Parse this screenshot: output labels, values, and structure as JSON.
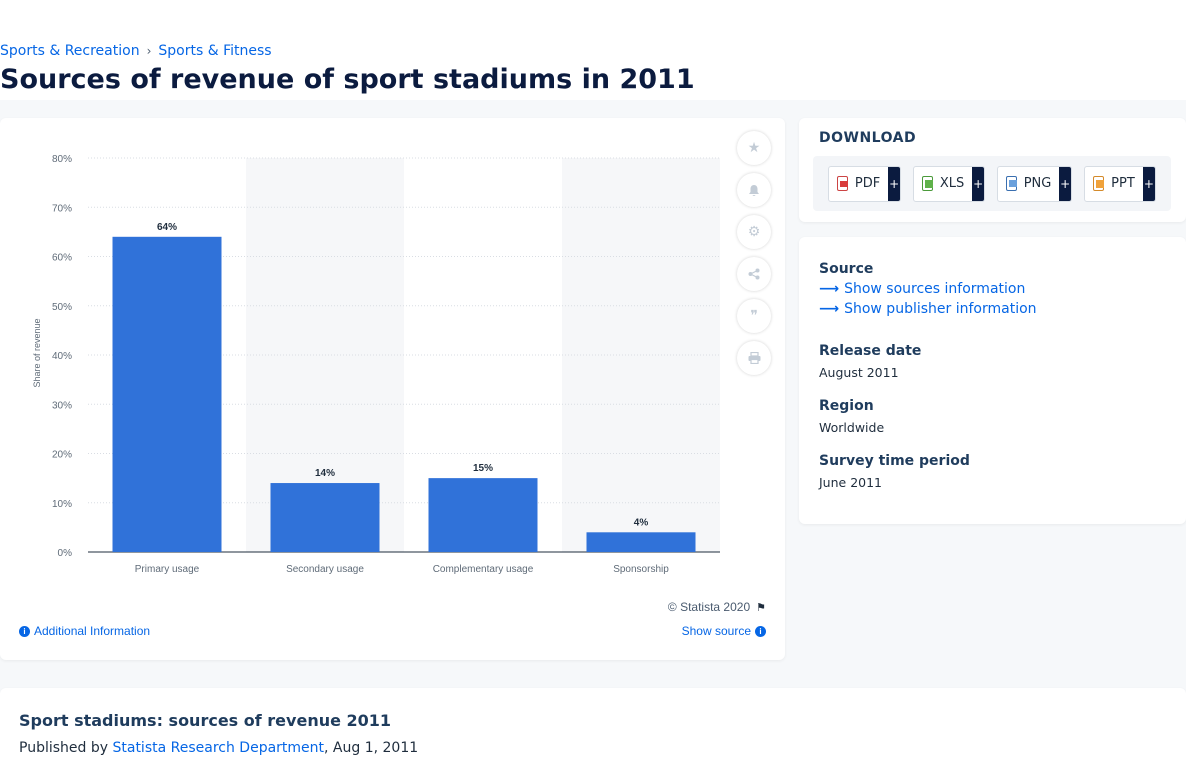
{
  "breadcrumb": {
    "items": [
      "Sports & Recreation",
      "Sports & Fitness"
    ],
    "separator": "›"
  },
  "page_title": "Sources of revenue of sport stadiums in 2011",
  "chart_data": {
    "type": "bar",
    "title": "",
    "categories": [
      "Primary usage",
      "Secondary usage",
      "Complementary usage",
      "Sponsorship"
    ],
    "values": [
      64,
      14,
      15,
      4
    ],
    "data_labels": [
      "64%",
      "14%",
      "15%",
      "4%"
    ],
    "xlabel": "",
    "ylabel": "Share of revenue",
    "ylim": [
      0,
      80
    ],
    "yticks": [
      0,
      10,
      20,
      30,
      40,
      50,
      60,
      70,
      80
    ],
    "ytick_labels": [
      "0%",
      "10%",
      "20%",
      "30%",
      "40%",
      "50%",
      "60%",
      "70%",
      "80%"
    ],
    "grid": true,
    "bar_color": "#3072d9",
    "band_color": "#f6f7f9"
  },
  "chart_footer": {
    "copyright": "© Statista 2020",
    "additional_info": "Additional Information",
    "show_source": "Show source"
  },
  "tools": [
    "star-icon",
    "bell-icon",
    "gear-icon",
    "share-icon",
    "quote-icon",
    "print-icon"
  ],
  "download": {
    "heading": "DOWNLOAD",
    "buttons": [
      {
        "label": "PDF",
        "plus": "+"
      },
      {
        "label": "XLS",
        "plus": "+"
      },
      {
        "label": "PNG",
        "plus": "+"
      },
      {
        "label": "PPT",
        "plus": "+"
      }
    ]
  },
  "info": {
    "source_label": "Source",
    "show_sources": "Show sources information",
    "show_publisher": "Show publisher information",
    "release_label": "Release date",
    "release_value": "August 2011",
    "region_label": "Region",
    "region_value": "Worldwide",
    "survey_label": "Survey time period",
    "survey_value": "June 2011"
  },
  "bottom": {
    "title": "Sport stadiums: sources of revenue 2011",
    "published_prefix": "Published by",
    "publisher": "Statista Research Department",
    "date": ", Aug 1, 2011"
  }
}
